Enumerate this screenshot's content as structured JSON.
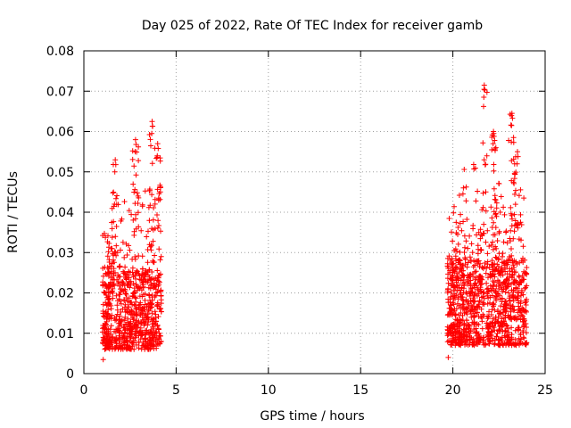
{
  "chart_data": {
    "type": "scatter",
    "title": "Day 025 of 2022, Rate Of TEC Index for receiver gamb",
    "xlabel": "GPS time / hours",
    "ylabel": "ROTI / TECUs",
    "xlim": [
      0,
      25
    ],
    "ylim": [
      0,
      0.08
    ],
    "grid": true,
    "legend": "none",
    "marker": "+",
    "color": "#ff0000",
    "xticks": [
      "0",
      "5",
      "10",
      "15",
      "20",
      "25"
    ],
    "yticks": [
      "0",
      "0.01",
      "0.02",
      "0.03",
      "0.04",
      "0.05",
      "0.06",
      "0.07",
      "0.08"
    ],
    "clusters": [
      {
        "x_range": [
          1.0,
          4.2
        ],
        "y_min": 0.0035,
        "y_max": 0.0625,
        "typical_range": [
          0.006,
          0.025
        ],
        "peaks": [
          {
            "x": 1.7,
            "y": 0.053
          },
          {
            "x": 2.8,
            "y": 0.058
          },
          {
            "x": 3.7,
            "y": 0.0625
          },
          {
            "x": 4.0,
            "y": 0.057
          }
        ]
      },
      {
        "x_range": [
          19.7,
          24.0
        ],
        "y_min": 0.004,
        "y_max": 0.0715,
        "typical_range": [
          0.007,
          0.028
        ],
        "peaks": [
          {
            "x": 21.7,
            "y": 0.0715
          },
          {
            "x": 22.2,
            "y": 0.06
          },
          {
            "x": 23.2,
            "y": 0.0645
          },
          {
            "x": 23.5,
            "y": 0.055
          }
        ]
      }
    ]
  }
}
